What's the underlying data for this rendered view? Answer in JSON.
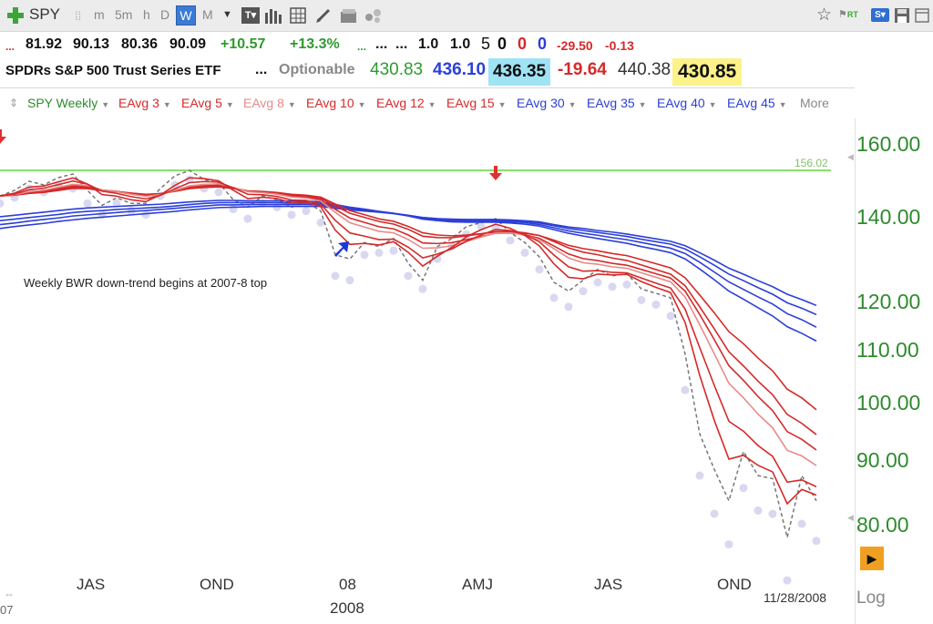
{
  "toolbar": {
    "symbol": "SPY",
    "periods": [
      "m",
      "5m",
      "h",
      "D",
      "W",
      "M"
    ],
    "active_period": "W"
  },
  "quote": {
    "open_hi_lo_close": [
      "81.92",
      "90.13",
      "80.36",
      "90.09"
    ],
    "change": "+10.57",
    "change_pct": "+13.3%",
    "dots1": "...",
    "dots2": "...",
    "size1": "1.0",
    "size2": "1.0",
    "n1": "5",
    "n2": "0",
    "n3": "0",
    "n4": "0",
    "chg2": "-29.50",
    "chg3": "-0.13",
    "name": "SPDRs S&P 500 Trust Series ETF",
    "dots3": "...",
    "optionable": "Optionable",
    "p1": "430.83",
    "p2": "436.10",
    "p3": "436.35",
    "p4": "-19.64",
    "p5": "440.38",
    "p6": "430.85"
  },
  "legend": {
    "items": [
      "SPY Weekly",
      "EAvg 3",
      "EAvg 5",
      "EAvg 8",
      "EAvg 10",
      "EAvg 12",
      "EAvg 15",
      "EAvg 30",
      "EAvg 35",
      "EAvg 40",
      "EAvg 45"
    ],
    "more": "More"
  },
  "chart_data": {
    "type": "line",
    "symbol": "SPY",
    "period": "Weekly",
    "scale": "log",
    "ylim": [
      76,
      168
    ],
    "y_ticks": [
      "160.00",
      "140.00",
      "120.00",
      "110.00",
      "100.00",
      "90.00",
      "80.00"
    ],
    "x_ticks": [
      "JAS",
      "OND",
      "08",
      "AMJ",
      "JAS",
      "OND"
    ],
    "year_label": "2008",
    "partial_left_label": "07",
    "date_label": "11/28/2008",
    "scale_label": "Log",
    "hline": {
      "value": 156.02,
      "label": "156.02",
      "color": "#86e06a"
    },
    "annotation": "Weekly BWR down-trend begins at 2007-8 top",
    "close": [
      149,
      150.5,
      153,
      152,
      154,
      155,
      150.5,
      146.5,
      148.5,
      147,
      147,
      151,
      154.5,
      156,
      153.5,
      152.5,
      148,
      146,
      149,
      148,
      146,
      147.5,
      145,
      134,
      133,
      137,
      136,
      138,
      132,
      128,
      136,
      138,
      141,
      142,
      143,
      139.5,
      137,
      133.5,
      127.5,
      125.5,
      128,
      130.5,
      129,
      129.5,
      126,
      125,
      124,
      112,
      97,
      91,
      86,
      94,
      90,
      89.5,
      80.5,
      90,
      86
    ],
    "series": [
      {
        "name": "EAvg 3",
        "color": "#d42a2a",
        "values": [
          149.0,
          149.75,
          151.38,
          151.69,
          152.84,
          153.92,
          152.21,
          149.36,
          148.93,
          147.96,
          147.48,
          149.24,
          151.87,
          153.94,
          153.72,
          153.11,
          150.55,
          148.28,
          148.64,
          148.32,
          147.16,
          147.33,
          146.16,
          140.08,
          136.54,
          136.77,
          136.39,
          137.19,
          134.6,
          131.3,
          133.65,
          135.82,
          138.41,
          140.21,
          141.6,
          140.55,
          138.78,
          136.14,
          131.82,
          128.66,
          128.33,
          129.41,
          129.21,
          129.35,
          127.68,
          126.34,
          125.17,
          118.58,
          107.79,
          99.4,
          92.7,
          93.35,
          91.67,
          90.59,
          85.54,
          87.77,
          86.89
        ]
      },
      {
        "name": "EAvg 5",
        "color": "#d42a2a",
        "values": [
          149.0,
          149.5,
          150.67,
          151.11,
          152.07,
          153.05,
          152.2,
          150.3,
          149.7,
          148.8,
          148.2,
          149.13,
          150.92,
          152.61,
          152.91,
          152.77,
          151.18,
          149.45,
          149.3,
          148.87,
          147.91,
          147.78,
          146.85,
          142.57,
          139.38,
          138.58,
          137.72,
          137.81,
          135.87,
          133.25,
          134.17,
          135.45,
          137.3,
          138.87,
          140.25,
          140.0,
          139.0,
          137.17,
          133.94,
          131.13,
          130.09,
          130.23,
          129.82,
          129.71,
          128.48,
          127.32,
          126.21,
          121.48,
          113.32,
          105.88,
          99.25,
          97.5,
          95.0,
          93.17,
          88.94,
          89.3,
          88.2
        ]
      },
      {
        "name": "EAvg 8",
        "color": "#e88a8a",
        "values": [
          149.0,
          149.33,
          150.15,
          150.56,
          151.33,
          152.15,
          151.78,
          150.61,
          150.14,
          149.44,
          148.9,
          149.37,
          150.51,
          151.72,
          152.12,
          152.29,
          151.33,
          150.14,
          149.88,
          149.46,
          148.69,
          148.42,
          147.66,
          144.63,
          141.97,
          140.87,
          139.79,
          139.4,
          137.76,
          135.59,
          135.68,
          136.2,
          137.27,
          138.32,
          139.36,
          139.39,
          138.86,
          137.73,
          135.46,
          133.25,
          132.09,
          131.74,
          131.13,
          130.77,
          129.71,
          128.66,
          127.63,
          124.16,
          118.12,
          112.08,
          106.28,
          103.55,
          100.54,
          98.09,
          94.18,
          93.25,
          91.63
        ]
      },
      {
        "name": "EAvg 10",
        "color": "#d42a2a",
        "values": [
          149.0,
          149.27,
          149.95,
          150.32,
          151.0,
          151.73,
          151.51,
          150.6,
          150.22,
          149.64,
          149.16,
          149.5,
          150.41,
          151.43,
          151.81,
          151.94,
          151.22,
          150.27,
          150.04,
          149.67,
          149.0,
          148.73,
          147.97,
          145.43,
          143.17,
          142.05,
          140.95,
          140.41,
          138.88,
          136.9,
          136.74,
          136.97,
          137.71,
          138.49,
          139.31,
          139.35,
          138.93,
          138.04,
          136.13,
          134.2,
          133.08,
          132.61,
          131.95,
          131.5,
          130.5,
          129.5,
          128.5,
          125.49,
          120.31,
          114.98,
          109.71,
          106.84,
          103.78,
          101.18,
          97.42,
          96.07,
          94.24
        ]
      },
      {
        "name": "EAvg 12",
        "color": "#d42a2a",
        "values": [
          149.0,
          149.23,
          149.81,
          150.15,
          150.74,
          151.4,
          151.26,
          150.53,
          150.22,
          149.72,
          149.31,
          149.57,
          150.33,
          151.2,
          151.55,
          151.7,
          151.13,
          150.34,
          150.13,
          149.81,
          149.23,
          148.97,
          148.36,
          146.31,
          144.41,
          143.34,
          142.29,
          141.63,
          140.3,
          138.56,
          138.22,
          138.19,
          138.63,
          139.15,
          139.74,
          139.78,
          139.43,
          138.75,
          137.25,
          135.67,
          134.64,
          134.01,
          133.22,
          132.64,
          131.55,
          130.47,
          129.4,
          126.72,
          121.99,
          117.23,
          112.5,
          109.66,
          106.69,
          104.11,
          100.49,
          98.88,
          96.9
        ]
      },
      {
        "name": "EAvg 15",
        "color": "#d42a2a",
        "values": [
          149.0,
          149.19,
          149.67,
          149.96,
          150.47,
          151.03,
          150.96,
          150.41,
          150.17,
          149.78,
          149.43,
          149.63,
          150.24,
          150.96,
          151.28,
          151.43,
          150.99,
          150.37,
          150.2,
          149.93,
          149.44,
          149.2,
          148.68,
          146.84,
          145.11,
          144.05,
          142.95,
          142.33,
          141.04,
          139.41,
          138.86,
          138.66,
          138.84,
          139.19,
          139.65,
          139.64,
          139.32,
          138.72,
          137.57,
          136.3,
          135.51,
          134.97,
          134.31,
          133.79,
          132.83,
          131.85,
          130.87,
          128.55,
          124.61,
          120.66,
          116.65,
          114.15,
          111.23,
          108.69,
          105.17,
          103.52,
          101.33
        ]
      },
      {
        "name": "EAvg 30",
        "color": "#2c3fd8",
        "values": [
          143.5,
          143.9,
          144.3,
          144.7,
          145.1,
          145.5,
          145.8,
          146.0,
          146.2,
          146.4,
          146.6,
          146.8,
          147.1,
          147.4,
          147.6,
          147.8,
          147.8,
          147.7,
          147.7,
          147.7,
          147.6,
          147.6,
          147.4,
          146.7,
          146.0,
          145.5,
          144.9,
          144.4,
          143.7,
          142.9,
          142.5,
          142.2,
          142.1,
          142.1,
          142.1,
          141.9,
          141.6,
          141.1,
          140.2,
          139.3,
          138.6,
          138.0,
          137.4,
          136.8,
          136.0,
          135.3,
          134.5,
          133.0,
          130.6,
          128.1,
          125.5,
          123.7,
          121.8,
          120.0,
          117.7,
          116.3,
          114.7
        ]
      },
      {
        "name": "EAvg 35",
        "color": "#2c3fd8",
        "values": [
          142.5,
          142.9,
          143.3,
          143.7,
          144.1,
          144.6,
          144.9,
          145.1,
          145.4,
          145.6,
          145.8,
          146.0,
          146.3,
          146.7,
          147.0,
          147.2,
          147.2,
          147.2,
          147.2,
          147.2,
          147.1,
          147.1,
          147.0,
          146.4,
          145.8,
          145.4,
          144.9,
          144.4,
          143.8,
          143.1,
          142.8,
          142.5,
          142.4,
          142.4,
          142.4,
          142.2,
          142.0,
          141.5,
          140.7,
          139.9,
          139.3,
          138.8,
          138.2,
          137.7,
          137.0,
          136.3,
          135.6,
          134.3,
          132.2,
          129.9,
          127.6,
          125.9,
          124.2,
          122.6,
          120.5,
          119.2,
          117.6
        ]
      },
      {
        "name": "EAvg 40",
        "color": "#2c3fd8",
        "values": [
          141.5,
          141.9,
          142.4,
          142.8,
          143.2,
          143.7,
          144.0,
          144.3,
          144.6,
          144.9,
          145.1,
          145.4,
          145.7,
          146.0,
          146.3,
          146.6,
          146.6,
          146.7,
          146.7,
          146.7,
          146.7,
          146.7,
          146.6,
          146.1,
          145.6,
          145.2,
          144.8,
          144.4,
          143.9,
          143.3,
          143.0,
          142.8,
          142.7,
          142.7,
          142.7,
          142.5,
          142.3,
          141.9,
          141.2,
          140.5,
          140.0,
          139.5,
          139.0,
          138.5,
          137.8,
          137.2,
          136.6,
          135.4,
          133.5,
          131.5,
          129.4,
          127.9,
          126.3,
          124.8,
          122.9,
          121.7,
          120.3
        ]
      },
      {
        "name": "EAvg 45",
        "color": "#2c3fd8",
        "values": [
          140.5,
          141.0,
          141.4,
          141.8,
          142.3,
          142.7,
          143.1,
          143.4,
          143.7,
          144.0,
          144.3,
          144.6,
          144.9,
          145.3,
          145.6,
          145.9,
          146.0,
          146.1,
          146.2,
          146.2,
          146.2,
          146.2,
          146.2,
          145.7,
          145.3,
          145.0,
          144.7,
          144.3,
          143.8,
          143.3,
          143.0,
          142.9,
          142.8,
          142.8,
          142.8,
          142.7,
          142.5,
          142.2,
          141.5,
          140.9,
          140.5,
          140.0,
          139.6,
          139.1,
          138.5,
          137.9,
          137.3,
          136.2,
          134.5,
          132.7,
          130.8,
          129.4,
          127.9,
          126.5,
          124.8,
          123.6,
          122.3
        ]
      }
    ],
    "lows": [
      147,
      148.5,
      151,
      150,
      152,
      151,
      147,
      144,
      147,
      145,
      144,
      149,
      152,
      153.5,
      151,
      150,
      145.5,
      143,
      147,
      146,
      144,
      145,
      142,
      129,
      128,
      134,
      134.5,
      135,
      129,
      126,
      133,
      136,
      139,
      141,
      140.5,
      137.5,
      134.5,
      130.5,
      124,
      122,
      125.5,
      127.5,
      126.5,
      127,
      123.5,
      122.5,
      120,
      105,
      90,
      84,
      79.5,
      88,
      84.5,
      84,
      74.5,
      82.5,
      80
    ],
    "markers": [
      {
        "type": "down-arrow",
        "color": "#e03030",
        "index": 0
      },
      {
        "type": "up-arrow",
        "color": "#1a3ad8",
        "index": 21
      },
      {
        "type": "down-arrow",
        "color": "#e03030",
        "index": 34
      }
    ]
  }
}
